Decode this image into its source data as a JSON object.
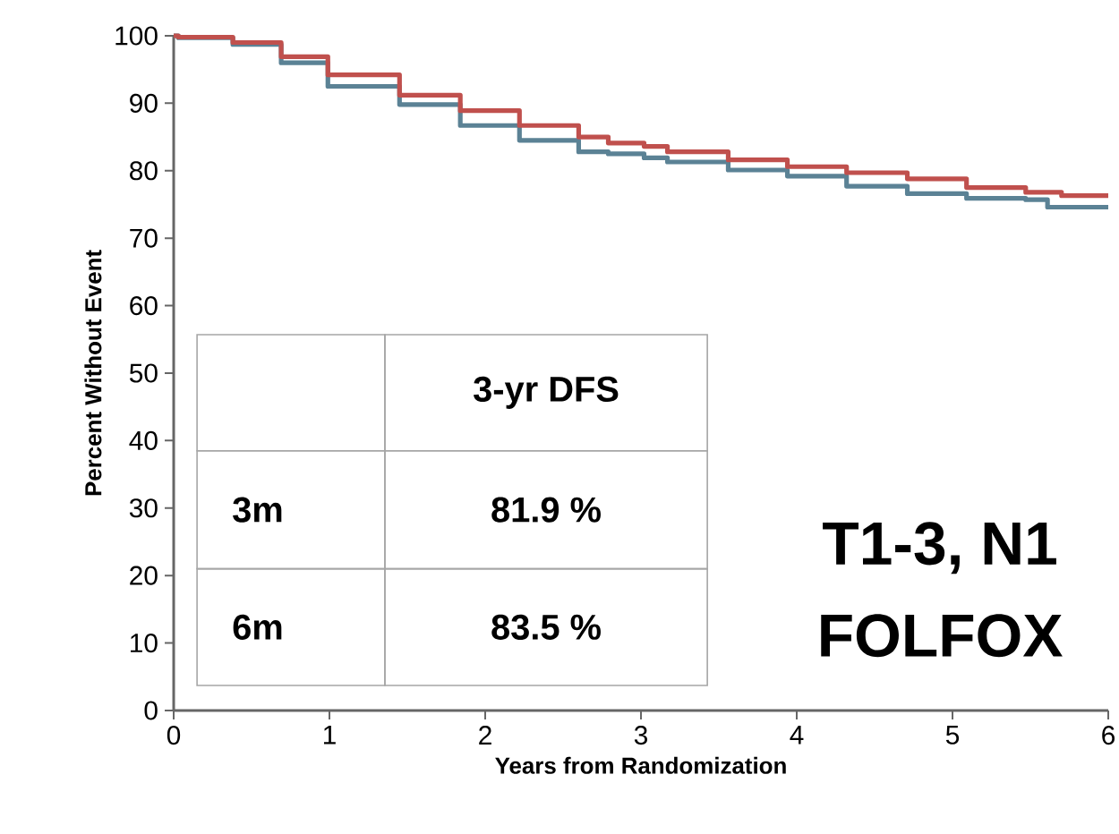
{
  "chart_data": {
    "type": "step",
    "xlabel": "Years from Randomization",
    "ylabel": "Percent Without Event",
    "xlim": [
      0,
      6
    ],
    "ylim": [
      0,
      100
    ],
    "xticks": [
      0,
      1,
      2,
      3,
      4,
      5,
      6
    ],
    "yticks": [
      0,
      10,
      20,
      30,
      40,
      50,
      60,
      70,
      80,
      90,
      100
    ],
    "grid": false,
    "series": [
      {
        "color": "#5b8295",
        "x": [
          0,
          0.03,
          0.38,
          0.69,
          0.99,
          1.45,
          1.84,
          2.22,
          2.6,
          2.79,
          3.02,
          3.17,
          3.56,
          3.94,
          4.32,
          4.71,
          5.09,
          5.47,
          5.61,
          6.0
        ],
        "values": [
          100,
          99.7,
          98.7,
          96.0,
          92.5,
          89.8,
          86.7,
          84.5,
          82.8,
          82.5,
          81.9,
          81.3,
          80.1,
          79.2,
          77.7,
          76.6,
          75.9,
          75.7,
          74.6,
          74.6
        ]
      },
      {
        "color": "#c0504d",
        "x": [
          0,
          0.03,
          0.38,
          0.69,
          0.99,
          1.45,
          1.84,
          2.22,
          2.6,
          2.79,
          3.02,
          3.17,
          3.56,
          3.94,
          4.32,
          4.71,
          5.09,
          5.47,
          5.7,
          6.0
        ],
        "values": [
          100,
          99.8,
          99.0,
          96.9,
          94.2,
          91.2,
          88.9,
          86.7,
          85.0,
          84.1,
          83.6,
          82.8,
          81.6,
          80.6,
          79.7,
          78.8,
          77.5,
          76.8,
          76.3,
          76.3
        ]
      }
    ],
    "annotations": [
      "3-yr DFS",
      "3m",
      "81.9 %",
      "6m",
      "83.5 %",
      "T1-3, N1",
      "FOLFOX"
    ]
  }
}
